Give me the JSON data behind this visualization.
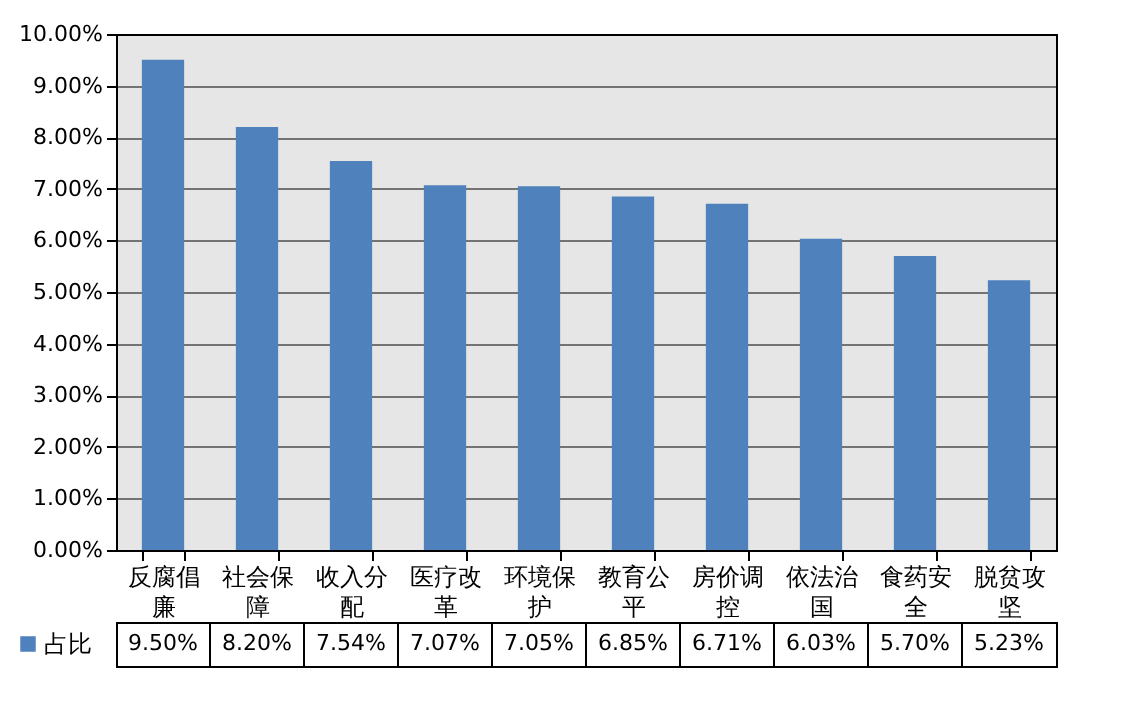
{
  "chart_data": {
    "type": "bar",
    "categories": [
      "反腐倡廉",
      "社会保障",
      "收入分配",
      "医疗改革",
      "环境保护",
      "教育公平",
      "房价调控",
      "依法治国",
      "食药安全",
      "脱贫攻坚"
    ],
    "series": [
      {
        "name": "占比",
        "color": "#4f81bd",
        "values": [
          9.5,
          8.2,
          7.54,
          7.07,
          7.05,
          6.85,
          6.71,
          6.03,
          5.7,
          5.23
        ],
        "value_labels": [
          "9.50%",
          "8.20%",
          "7.54%",
          "7.07%",
          "7.05%",
          "6.85%",
          "6.71%",
          "6.03%",
          "5.70%",
          "5.23%"
        ]
      }
    ],
    "ylim": [
      0,
      10
    ],
    "yticks": [
      {
        "value": 0,
        "label": "0.00%"
      },
      {
        "value": 1,
        "label": "1.00%"
      },
      {
        "value": 2,
        "label": "2.00%"
      },
      {
        "value": 3,
        "label": "3.00%"
      },
      {
        "value": 4,
        "label": "4.00%"
      },
      {
        "value": 5,
        "label": "5.00%"
      },
      {
        "value": 6,
        "label": "6.00%"
      },
      {
        "value": 7,
        "label": "7.00%"
      },
      {
        "value": 8,
        "label": "8.00%"
      },
      {
        "value": 9,
        "label": "9.00%"
      },
      {
        "value": 10,
        "label": "10.00%"
      }
    ],
    "grid": "y",
    "legend": "bottom"
  }
}
